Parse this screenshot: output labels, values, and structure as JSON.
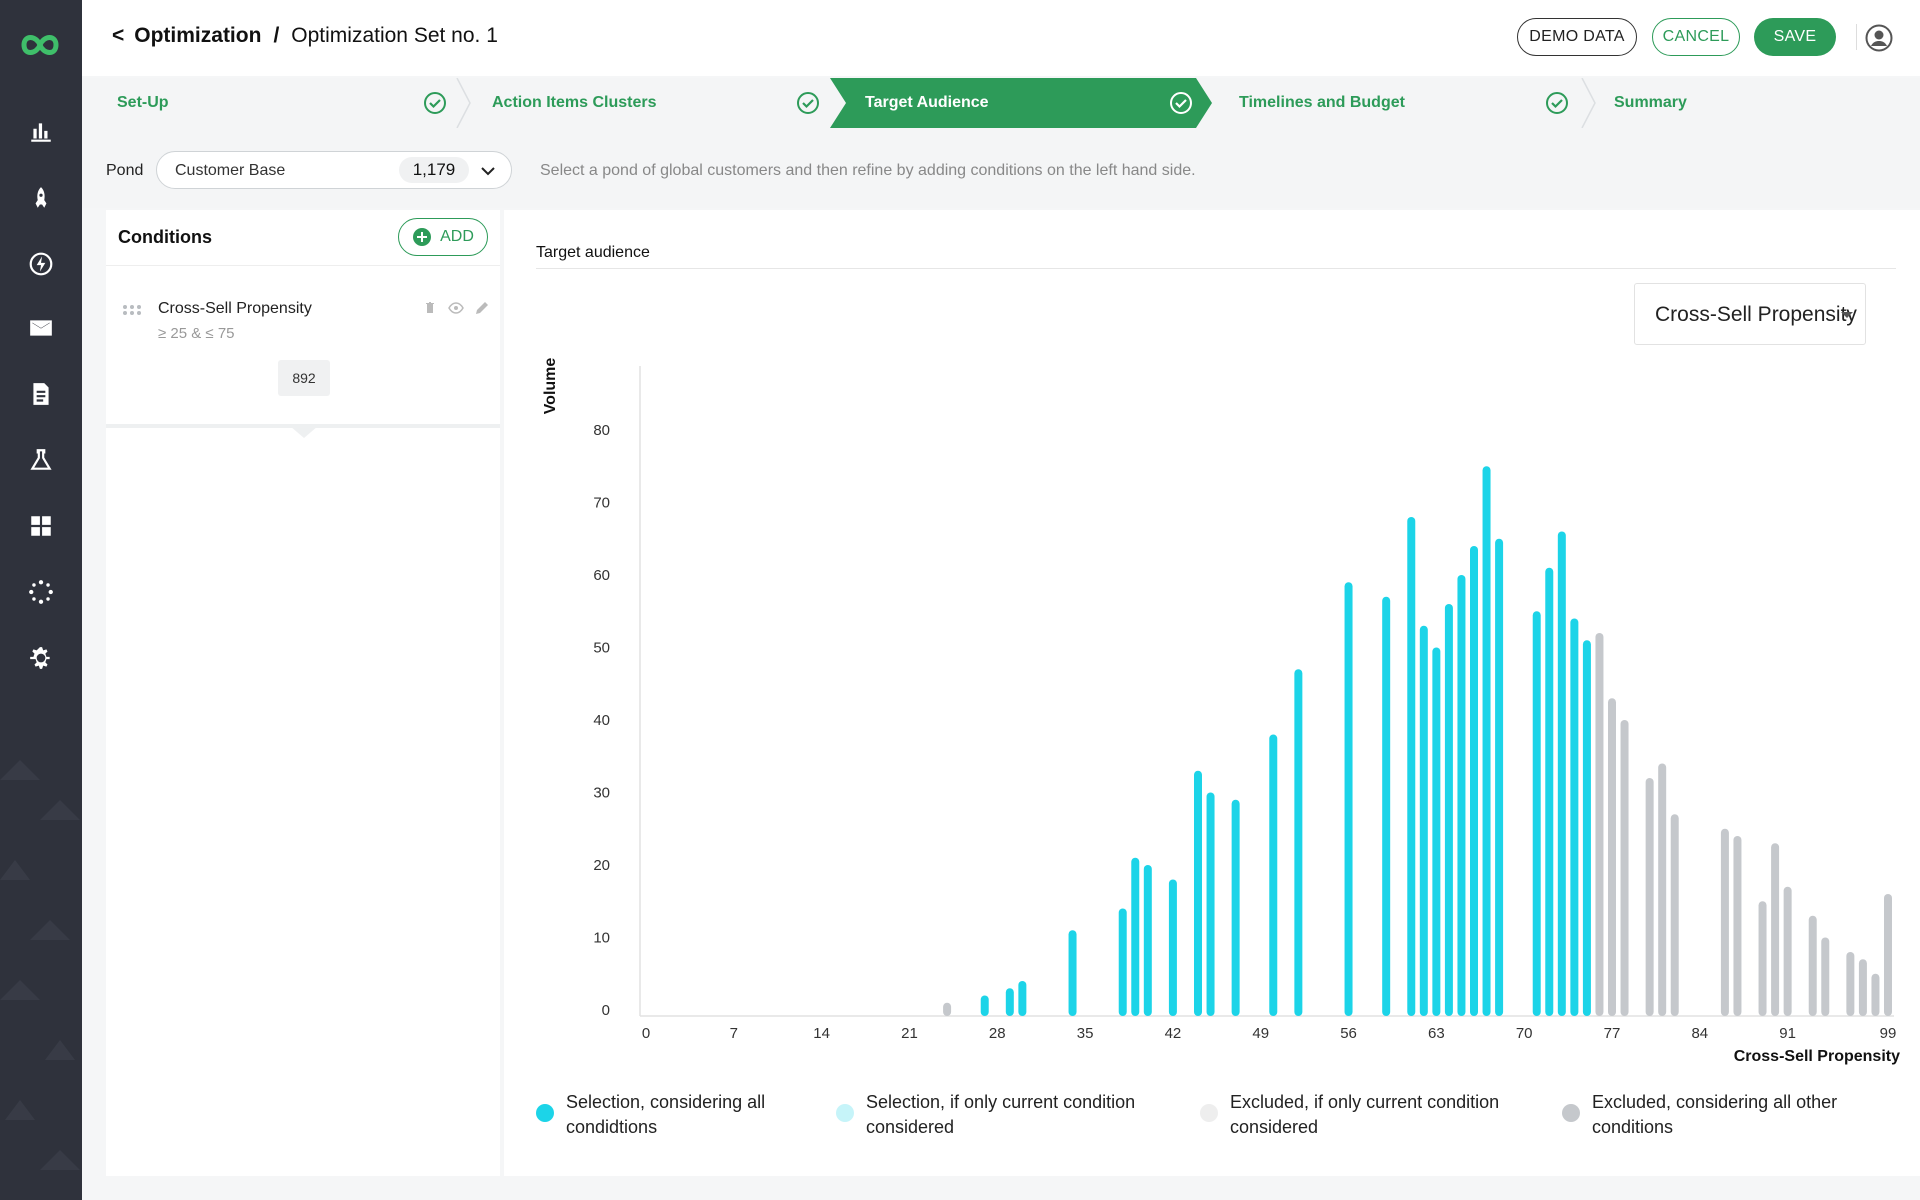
{
  "colors": {
    "accent": "#2d9b59",
    "selected": "#1cd4e8",
    "selected_light": "#c6f4f9",
    "excluded_light": "#eeeeee",
    "excluded": "#c5c8cc"
  },
  "header": {
    "back": "<",
    "crumb_parent": "Optimization",
    "separator": "/",
    "crumb_current": "Optimization Set no. 1",
    "demo_label": "DEMO DATA",
    "cancel_label": "CANCEL",
    "save_label": "SAVE"
  },
  "sidebar": {
    "items": [
      "chart-bar-icon",
      "rocket-icon",
      "lightning-icon",
      "mail-icon",
      "document-icon",
      "flask-icon",
      "dashboard-icon",
      "sparkle-icon",
      "settings-icon"
    ]
  },
  "stepper": {
    "steps": [
      {
        "label": "Set-Up",
        "done": true,
        "active": false
      },
      {
        "label": "Action Items Clusters",
        "done": true,
        "active": false
      },
      {
        "label": "Target Audience",
        "done": true,
        "active": true
      },
      {
        "label": "Timelines and Budget",
        "done": true,
        "active": false
      },
      {
        "label": "Summary",
        "done": false,
        "active": false
      }
    ]
  },
  "pond": {
    "label": "Pond",
    "value": "Customer Base",
    "count": "1,179",
    "hint": "Select a pond of global customers and then refine by adding conditions on the left hand side."
  },
  "conditions": {
    "title": "Conditions",
    "add_label": "ADD",
    "items": [
      {
        "name": "Cross-Sell Propensity",
        "range": "≥ 25 & ≤ 75",
        "count": "892"
      }
    ]
  },
  "chart_panel": {
    "title": "Target audience",
    "dropdown": "Cross-Sell Propensity"
  },
  "chart_data": {
    "type": "bar",
    "title": "Target audience",
    "xlabel": "Cross-Sell Propensity",
    "ylabel": "Volume",
    "xlim": [
      0,
      99
    ],
    "ylim": [
      0,
      90
    ],
    "x_ticks": [
      0,
      7,
      14,
      21,
      28,
      35,
      42,
      49,
      56,
      63,
      70,
      77,
      84,
      91,
      99
    ],
    "y_ticks": [
      0,
      10,
      20,
      30,
      40,
      50,
      60,
      70,
      80
    ],
    "series": [
      {
        "name": "Selection, considering all condidtions",
        "points": [
          [
            27,
            2
          ],
          [
            29,
            3
          ],
          [
            30,
            4
          ],
          [
            34,
            11
          ],
          [
            38,
            14
          ],
          [
            39,
            21
          ],
          [
            40,
            20
          ],
          [
            42,
            18
          ],
          [
            44,
            33
          ],
          [
            45,
            30
          ],
          [
            47,
            29
          ],
          [
            50,
            38
          ],
          [
            52,
            47
          ],
          [
            56,
            59
          ],
          [
            59,
            57
          ],
          [
            61,
            68
          ],
          [
            62,
            53
          ],
          [
            63,
            50
          ],
          [
            64,
            56
          ],
          [
            65,
            60
          ],
          [
            66,
            64
          ],
          [
            67,
            75
          ],
          [
            68,
            65
          ],
          [
            71,
            55
          ],
          [
            72,
            61
          ],
          [
            73,
            66
          ],
          [
            74,
            54
          ],
          [
            75,
            51
          ]
        ]
      },
      {
        "name": "Selection, if only current condition considered",
        "points": []
      },
      {
        "name": "Excluded, if only current condition considered",
        "points": []
      },
      {
        "name": "Excluded, considering all other conditions",
        "points": [
          [
            24,
            1
          ],
          [
            76,
            52
          ],
          [
            77,
            43
          ],
          [
            78,
            40
          ],
          [
            80,
            32
          ],
          [
            81,
            34
          ],
          [
            82,
            27
          ],
          [
            86,
            25
          ],
          [
            87,
            24
          ],
          [
            89,
            15
          ],
          [
            90,
            23
          ],
          [
            91,
            17
          ],
          [
            93,
            13
          ],
          [
            94,
            10
          ],
          [
            96,
            8
          ],
          [
            97,
            7
          ],
          [
            98,
            5
          ],
          [
            99,
            16
          ]
        ]
      }
    ]
  }
}
